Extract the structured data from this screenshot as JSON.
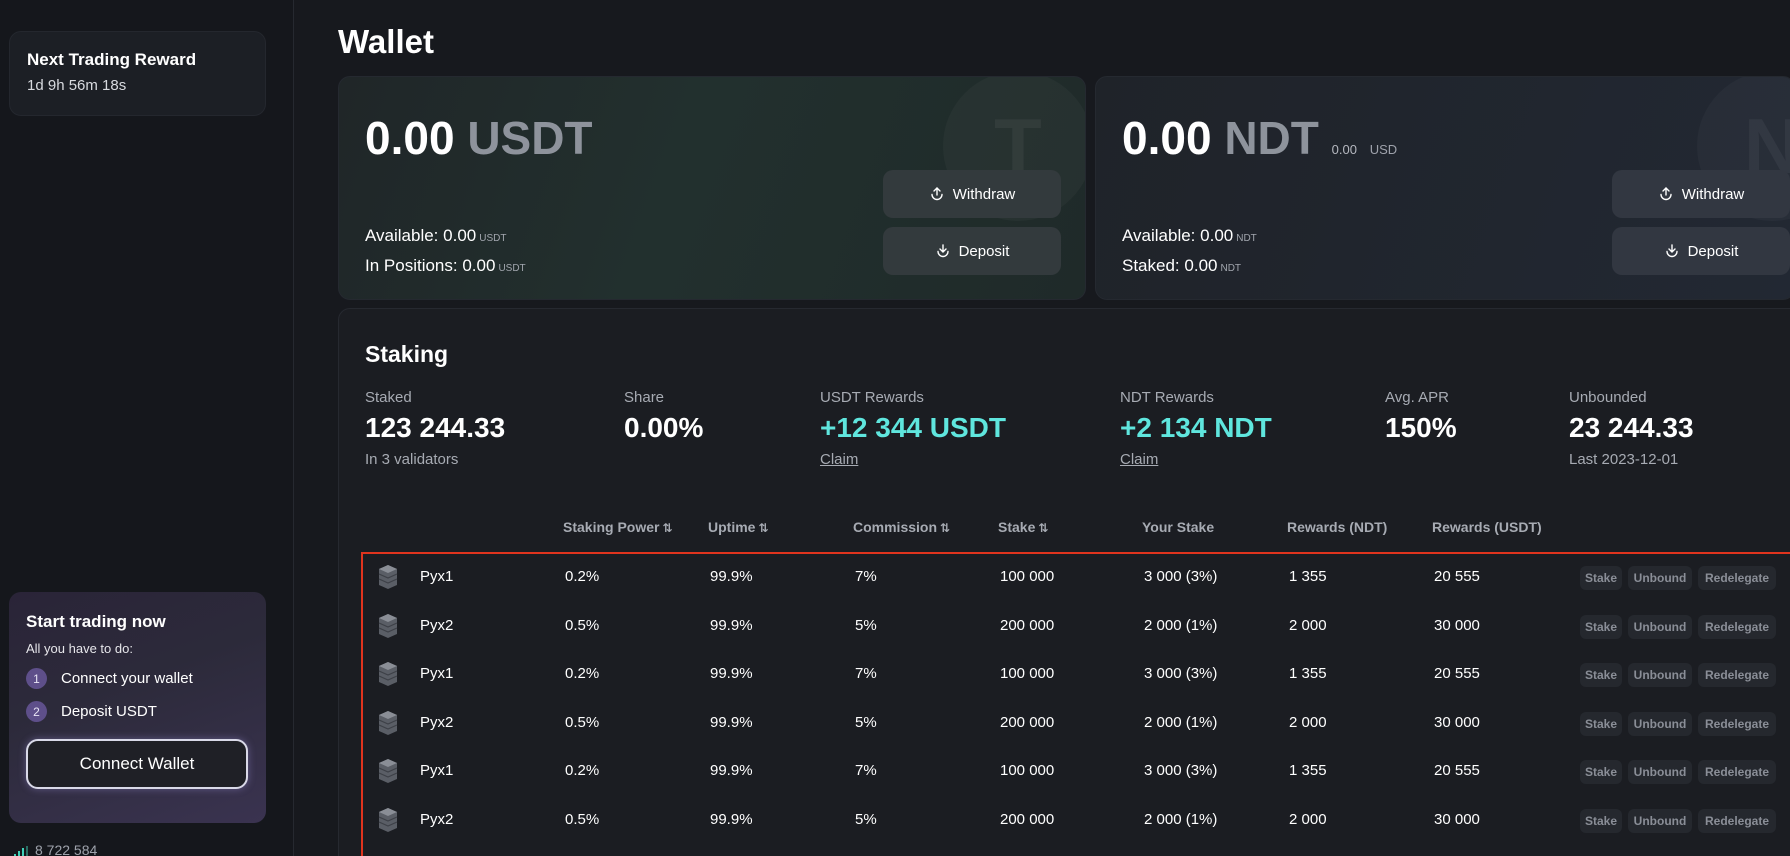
{
  "sidebar": {
    "reward_card": {
      "title": "Next Trading Reward",
      "timer": "1d 9h 56m 18s"
    },
    "start_card": {
      "title": "Start trading now",
      "subtitle": "All you have to do:",
      "steps": [
        {
          "num": "1",
          "label": "Connect your wallet"
        },
        {
          "num": "2",
          "label": "Deposit USDT"
        }
      ],
      "connect_label": "Connect Wallet"
    },
    "footer_value": "8 722 584"
  },
  "page": {
    "title": "Wallet"
  },
  "usdt_card": {
    "amount": "0.00",
    "currency": "USDT",
    "watermark": "T",
    "available_label": "Available:",
    "available_value": "0.00",
    "available_unit": "USDT",
    "positions_label": "In Positions:",
    "positions_value": "0.00",
    "positions_unit": "USDT",
    "withdraw_label": "Withdraw",
    "deposit_label": "Deposit"
  },
  "ndt_card": {
    "amount": "0.00",
    "currency": "NDT",
    "usd_value": "0.00",
    "usd_unit": "USD",
    "watermark": "N",
    "available_label": "Available:",
    "available_value": "0.00",
    "available_unit": "NDT",
    "staked_label": "Staked:",
    "staked_value": "0.00",
    "staked_unit": "NDT",
    "withdraw_label": "Withdraw",
    "deposit_label": "Deposit"
  },
  "staking": {
    "title": "Staking",
    "stats": {
      "staked": {
        "label": "Staked",
        "value": "123 244.33",
        "sub": "In 3 validators"
      },
      "share": {
        "label": "Share",
        "value": "0.00%"
      },
      "usdt_rewards": {
        "label": "USDT Rewards",
        "value": "+12 344 USDT",
        "claim": "Claim"
      },
      "ndt_rewards": {
        "label": "NDT Rewards",
        "value": "+2 134 NDT",
        "claim": "Claim"
      },
      "apr": {
        "label": "Avg. APR",
        "value": "150%"
      },
      "unbounded": {
        "label": "Unbounded",
        "value": "23 244.33",
        "sub": "Last 2023-12-01"
      }
    },
    "columns": {
      "power": "Staking Power",
      "uptime": "Uptime",
      "commission": "Commission",
      "stake": "Stake",
      "your_stake": "Your Stake",
      "rewards_ndt": "Rewards (NDT)",
      "rewards_usdt": "Rewards (USDT)"
    },
    "row_actions": {
      "stake": "Stake",
      "unbound": "Unbound",
      "redelegate": "Redelegate"
    },
    "rows": [
      {
        "name": "Pyx1",
        "power": "0.2%",
        "uptime": "99.9%",
        "commission": "7%",
        "stake": "100 000",
        "your_stake": "3 000 (3%)",
        "rewards_ndt": "1 355",
        "rewards_usdt": "20 555"
      },
      {
        "name": "Pyx2",
        "power": "0.5%",
        "uptime": "99.9%",
        "commission": "5%",
        "stake": "200 000",
        "your_stake": "2 000 (1%)",
        "rewards_ndt": "2 000",
        "rewards_usdt": "30 000"
      },
      {
        "name": "Pyx1",
        "power": "0.2%",
        "uptime": "99.9%",
        "commission": "7%",
        "stake": "100 000",
        "your_stake": "3 000 (3%)",
        "rewards_ndt": "1 355",
        "rewards_usdt": "20 555"
      },
      {
        "name": "Pyx2",
        "power": "0.5%",
        "uptime": "99.9%",
        "commission": "5%",
        "stake": "200 000",
        "your_stake": "2 000 (1%)",
        "rewards_ndt": "2 000",
        "rewards_usdt": "30 000"
      },
      {
        "name": "Pyx1",
        "power": "0.2%",
        "uptime": "99.9%",
        "commission": "7%",
        "stake": "100 000",
        "your_stake": "3 000 (3%)",
        "rewards_ndt": "1 355",
        "rewards_usdt": "20 555"
      },
      {
        "name": "Pyx2",
        "power": "0.5%",
        "uptime": "99.9%",
        "commission": "5%",
        "stake": "200 000",
        "your_stake": "2 000 (1%)",
        "rewards_ndt": "2 000",
        "rewards_usdt": "30 000"
      }
    ]
  },
  "colors": {
    "accent_cyan": "#5fe6de",
    "highlight_border": "#e0341e",
    "step_badge": "#5e4f8a"
  }
}
